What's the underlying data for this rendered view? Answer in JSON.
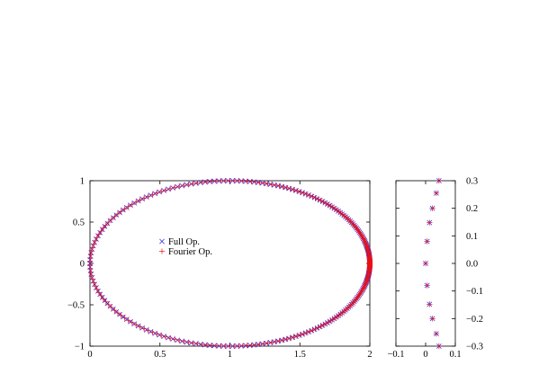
{
  "chart_data": [
    {
      "type": "scatter",
      "title": "",
      "xlabel": "",
      "ylabel": "",
      "xlim": [
        0,
        2
      ],
      "ylim": [
        -1,
        1
      ],
      "xticks": [
        0,
        0.5,
        1,
        1.5,
        2
      ],
      "xtick_labels": [
        "0",
        "0.5",
        "1",
        "1.5",
        "2"
      ],
      "yticks": [
        -1,
        -0.5,
        0,
        0.5,
        1
      ],
      "ytick_labels": [
        "−1",
        "−0.5",
        "0",
        "0.5",
        "1"
      ],
      "grid": false,
      "legend_placement": "center-left",
      "curve": "eigenvalues lie on the circle |z - 1| = 1",
      "series": [
        {
          "name": "Full Op.",
          "marker": "x",
          "color": "#2222ee",
          "points_on_unit_circle_centered_at_1": true,
          "angle_samples_deg_from_center": "dense sampling over the whole circle, densest near x = 2"
        },
        {
          "name": "Fourier Op.",
          "marker": "+",
          "color": "#ee1111",
          "points_on_unit_circle_centered_at_1": true
        }
      ]
    },
    {
      "type": "scatter",
      "title": "",
      "xlim": [
        -0.1,
        0.1
      ],
      "ylim": [
        -0.3,
        0.3
      ],
      "xticks": [
        -0.1,
        0,
        0.1
      ],
      "xtick_labels": [
        "−0.1",
        "0",
        "0.1"
      ],
      "yticks": [
        -0.3,
        -0.2,
        -0.1,
        0,
        0.1,
        0.2,
        0.3
      ],
      "ytick_labels": [
        "−0.3",
        "−0.2",
        "−0.1",
        "0.0",
        "0.1",
        "0.2",
        "0.3"
      ],
      "y_axis_side": "right",
      "points": [
        {
          "x": 0.045,
          "y": 0.3
        },
        {
          "x": 0.036,
          "y": 0.255
        },
        {
          "x": 0.023,
          "y": 0.2
        },
        {
          "x": 0.013,
          "y": 0.148
        },
        {
          "x": 0.005,
          "y": 0.08
        },
        {
          "x": 0.0,
          "y": 0.0
        },
        {
          "x": 0.005,
          "y": -0.08
        },
        {
          "x": 0.013,
          "y": -0.148
        },
        {
          "x": 0.023,
          "y": -0.2
        },
        {
          "x": 0.036,
          "y": -0.255
        },
        {
          "x": 0.045,
          "y": -0.3
        }
      ]
    }
  ],
  "colors": {
    "full_op": "#2222ee",
    "fourier_op": "#ee1111",
    "axis": "#000000"
  }
}
